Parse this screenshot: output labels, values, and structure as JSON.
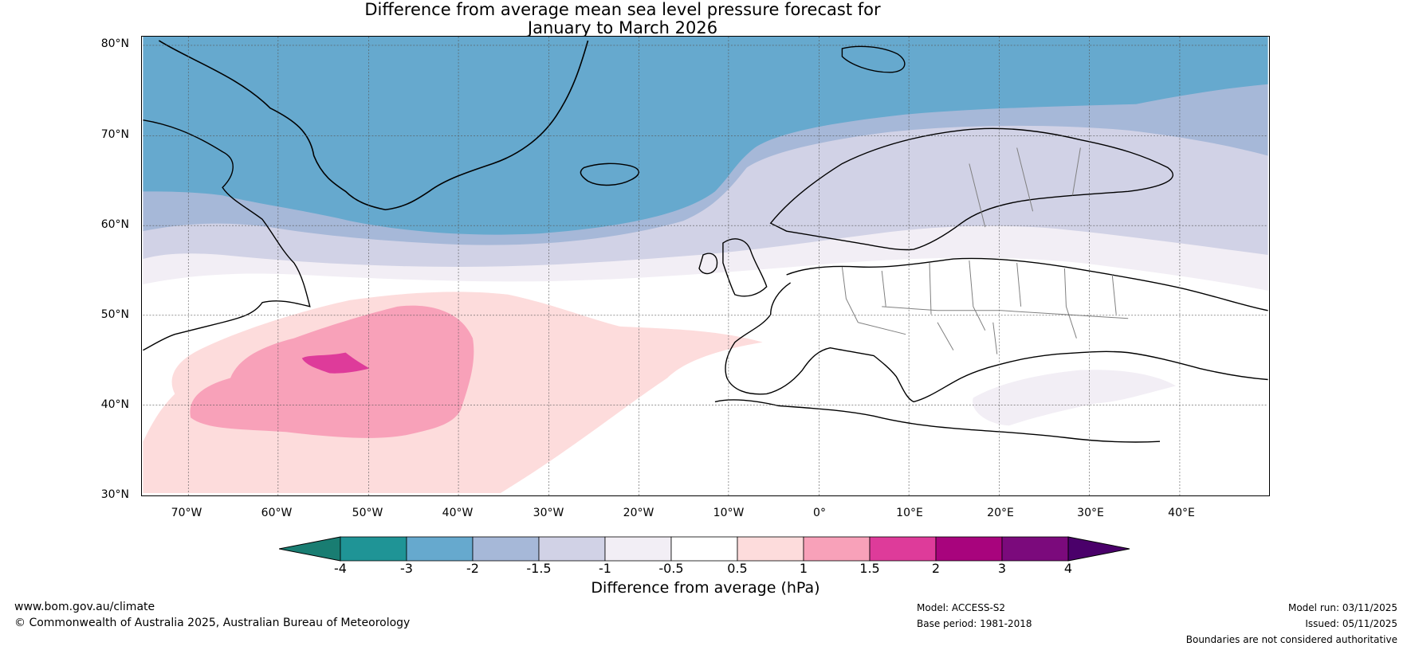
{
  "title": {
    "line1": "Difference from average mean sea level pressure forecast for",
    "line2": "January to March 2026"
  },
  "axes": {
    "lat_labels": [
      "80°N",
      "70°N",
      "60°N",
      "50°N",
      "40°N",
      "30°N"
    ],
    "lon_labels": [
      "70°W",
      "60°W",
      "50°W",
      "40°W",
      "30°W",
      "20°W",
      "10°W",
      "0°",
      "10°E",
      "20°E",
      "30°E",
      "40°E"
    ],
    "lat_range": [
      30,
      80
    ],
    "lon_range": [
      -75,
      50
    ]
  },
  "colorbar": {
    "ticks": [
      "-4",
      "-3",
      "-2",
      "-1.5",
      "-1",
      "-0.5",
      "0.5",
      "1",
      "1.5",
      "2",
      "3",
      "4"
    ],
    "colors": [
      "#197d72",
      "#1f9496",
      "#66a9ce",
      "#a6b8d8",
      "#d1d2e6",
      "#f2eef5",
      "#ffffff",
      "#fddcdc",
      "#f8a1b9",
      "#de3b9a",
      "#a8047d",
      "#7b0a7c",
      "#4a006a"
    ],
    "label": "Difference from average (hPa)"
  },
  "map_fill": {
    "ocean_blue": "#66a9ce",
    "light_blue": "#a6b8d8",
    "lavender": "#d1d2e6",
    "pale_lavender": "#f2eef5",
    "light_pink": "#fddcdc",
    "pink": "#f8a1b9",
    "magenta": "#de3b9a",
    "land_outline": "#000000",
    "border_outline": "#808080"
  },
  "footer": {
    "url": "www.bom.gov.au/climate",
    "copyright": "© Commonwealth of Australia 2025, Australian Bureau of Meteorology",
    "model": "Model: ACCESS-S2",
    "base_period": "Base period: 1981-2018",
    "model_run": "Model run: 03/11/2025",
    "issued": "Issued: 05/11/2025",
    "disclaimer": "Boundaries are not considered authoritative"
  }
}
